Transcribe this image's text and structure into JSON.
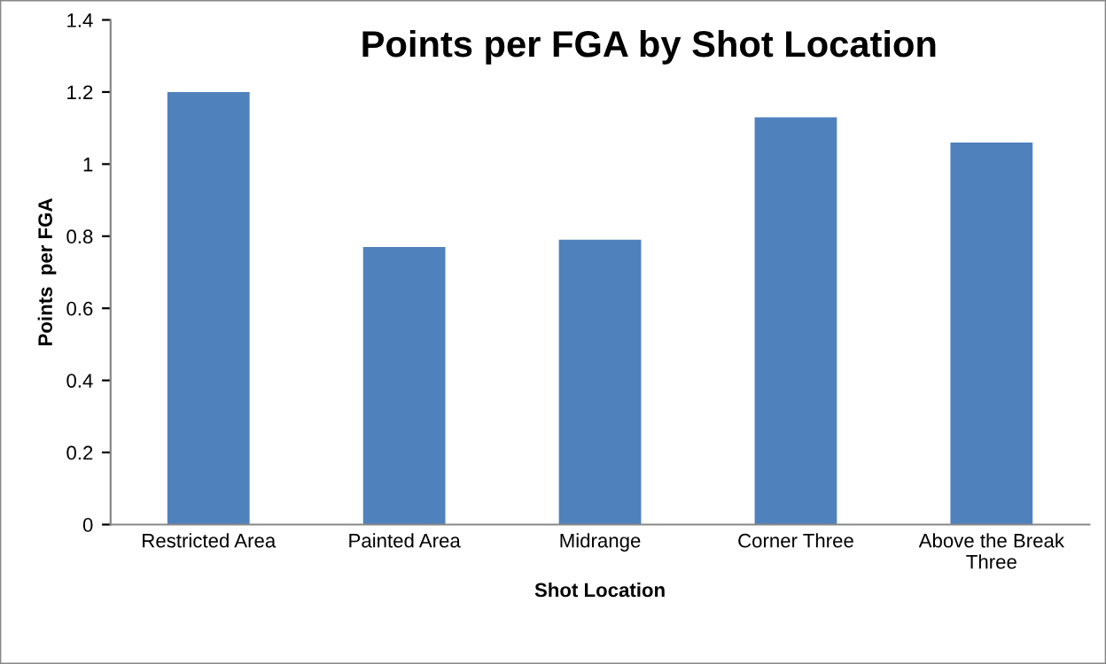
{
  "chart_data": {
    "type": "bar",
    "title": "Points per FGA by Shot Location",
    "xlabel": "Shot Location",
    "ylabel": "Points  per FGA",
    "categories": [
      "Restricted Area",
      "Painted Area",
      "Midrange",
      "Corner Three",
      "Above the Break Three"
    ],
    "values": [
      1.2,
      0.77,
      0.79,
      1.13,
      1.06
    ],
    "color": "#4f81bd",
    "ylim": [
      0,
      1.4
    ],
    "yticks": [
      0,
      0.2,
      0.4,
      0.6,
      0.8,
      1,
      1.2,
      1.4
    ],
    "grid": false,
    "legend": false
  }
}
